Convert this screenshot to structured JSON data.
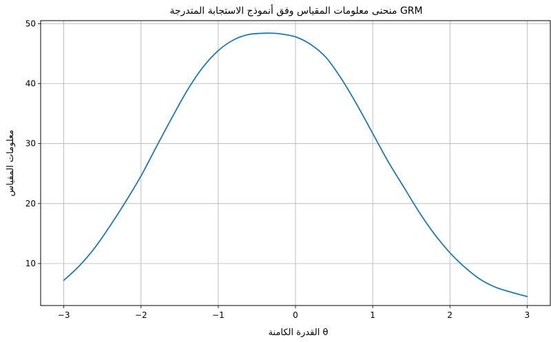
{
  "chart_data": {
    "type": "line",
    "title": "منحنى معلومات المقياس وفق أنموذج الاستجابة المتدرجة GRM",
    "xlabel": "القدرة الكامنة θ",
    "ylabel": "معلومات المقياس",
    "xlim": [
      -3.3,
      3.3
    ],
    "ylim": [
      3.0,
      50.5
    ],
    "xticks": [
      -3,
      -2,
      -1,
      0,
      1,
      2,
      3
    ],
    "xtick_labels": [
      "−3",
      "−2",
      "−1",
      "0",
      "1",
      "2",
      "3"
    ],
    "yticks": [
      10,
      20,
      30,
      40,
      50
    ],
    "ytick_labels": [
      "10",
      "20",
      "30",
      "40",
      "50"
    ],
    "grid": true,
    "series": [
      {
        "color": "#1f77b4",
        "x": [
          -3.0,
          -2.8,
          -2.6,
          -2.4,
          -2.2,
          -2.0,
          -1.8,
          -1.6,
          -1.4,
          -1.2,
          -1.0,
          -0.8,
          -0.6,
          -0.4,
          -0.3,
          -0.2,
          0.0,
          0.2,
          0.4,
          0.6,
          0.8,
          1.0,
          1.2,
          1.4,
          1.6,
          1.8,
          2.0,
          2.2,
          2.4,
          2.6,
          2.8,
          3.0
        ],
        "y": [
          7.2,
          9.6,
          12.6,
          16.3,
          20.3,
          24.6,
          29.5,
          34.3,
          38.9,
          42.7,
          45.5,
          47.3,
          48.2,
          48.4,
          48.4,
          48.3,
          47.8,
          46.5,
          44.3,
          40.7,
          36.4,
          31.7,
          27.0,
          22.8,
          18.6,
          14.9,
          11.8,
          9.3,
          7.3,
          6.0,
          5.2,
          4.5
        ]
      }
    ]
  }
}
